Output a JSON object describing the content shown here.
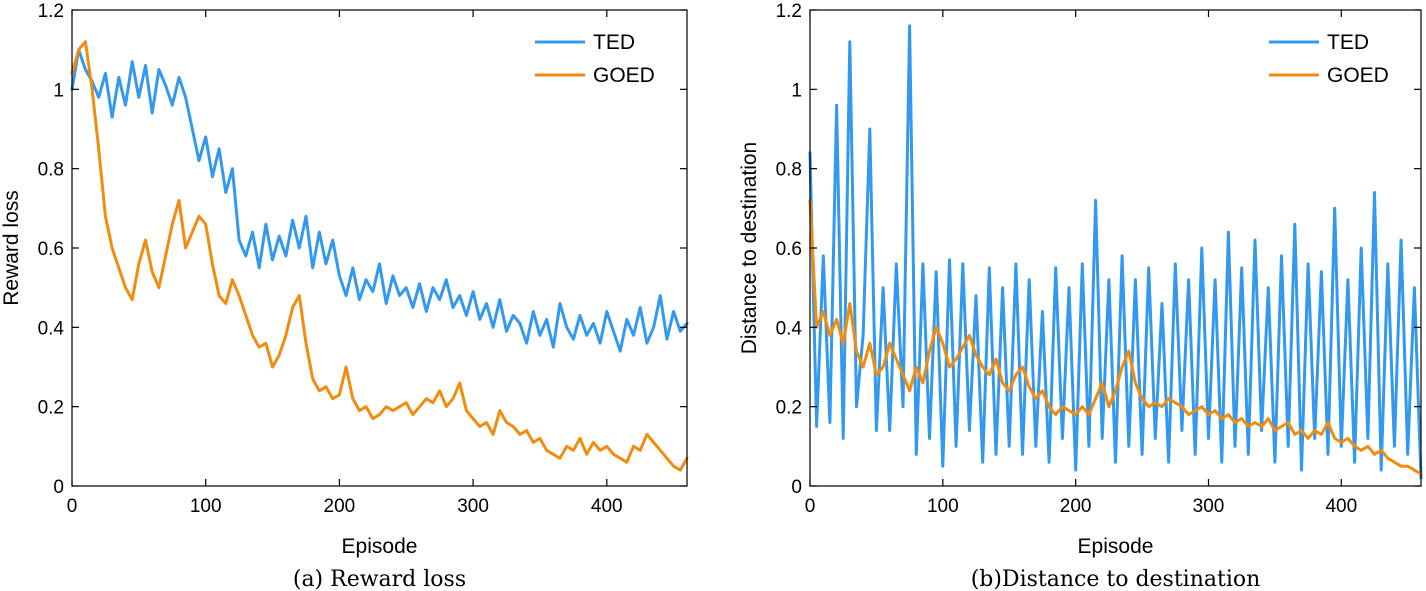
{
  "chart_data": [
    {
      "type": "line",
      "title": "",
      "caption": "(a) Reward loss",
      "xlabel": "Episode",
      "ylabel": "Reward loss",
      "xlim": [
        0,
        460
      ],
      "ylim": [
        0,
        1.2
      ],
      "xticks": [
        0,
        100,
        200,
        300,
        400
      ],
      "yticks": [
        0,
        0.2,
        0.4,
        0.6,
        0.8,
        1,
        1.2
      ],
      "xtick_labels": [
        "0",
        "100",
        "200",
        "300",
        "400"
      ],
      "ytick_labels": [
        "0",
        "0.2",
        "0.4",
        "0.6",
        "0.8",
        "1",
        "1.2"
      ],
      "legend": {
        "location": "top-right",
        "entries": [
          "TED",
          "GOED"
        ]
      },
      "series": [
        {
          "name": "TED",
          "color": "#3399ee",
          "x": [
            0,
            5,
            10,
            15,
            20,
            25,
            30,
            35,
            40,
            45,
            50,
            55,
            60,
            65,
            70,
            75,
            80,
            85,
            90,
            95,
            100,
            105,
            110,
            115,
            120,
            125,
            130,
            135,
            140,
            145,
            150,
            155,
            160,
            165,
            170,
            175,
            180,
            185,
            190,
            195,
            200,
            205,
            210,
            215,
            220,
            225,
            230,
            235,
            240,
            245,
            250,
            255,
            260,
            265,
            270,
            275,
            280,
            285,
            290,
            295,
            300,
            305,
            310,
            315,
            320,
            325,
            330,
            335,
            340,
            345,
            350,
            355,
            360,
            365,
            370,
            375,
            380,
            385,
            390,
            395,
            400,
            405,
            410,
            415,
            420,
            425,
            430,
            435,
            440,
            445,
            450,
            455,
            460
          ],
          "values": [
            1.0,
            1.1,
            1.05,
            1.02,
            0.98,
            1.04,
            0.93,
            1.03,
            0.96,
            1.07,
            0.98,
            1.06,
            0.94,
            1.05,
            1.01,
            0.96,
            1.03,
            0.98,
            0.9,
            0.82,
            0.88,
            0.78,
            0.85,
            0.74,
            0.8,
            0.62,
            0.58,
            0.64,
            0.55,
            0.66,
            0.57,
            0.63,
            0.58,
            0.67,
            0.6,
            0.68,
            0.55,
            0.64,
            0.56,
            0.62,
            0.53,
            0.48,
            0.55,
            0.47,
            0.52,
            0.49,
            0.56,
            0.46,
            0.53,
            0.48,
            0.5,
            0.45,
            0.51,
            0.44,
            0.5,
            0.47,
            0.52,
            0.45,
            0.48,
            0.43,
            0.49,
            0.42,
            0.46,
            0.4,
            0.47,
            0.39,
            0.43,
            0.41,
            0.36,
            0.44,
            0.38,
            0.42,
            0.35,
            0.46,
            0.4,
            0.37,
            0.43,
            0.38,
            0.41,
            0.36,
            0.44,
            0.39,
            0.34,
            0.42,
            0.38,
            0.45,
            0.36,
            0.4,
            0.48,
            0.37,
            0.44,
            0.39,
            0.41
          ]
        },
        {
          "name": "GOED",
          "color": "#f08c10",
          "x": [
            0,
            5,
            10,
            15,
            20,
            25,
            30,
            35,
            40,
            45,
            50,
            55,
            60,
            65,
            70,
            75,
            80,
            85,
            90,
            95,
            100,
            105,
            110,
            115,
            120,
            125,
            130,
            135,
            140,
            145,
            150,
            155,
            160,
            165,
            170,
            175,
            180,
            185,
            190,
            195,
            200,
            205,
            210,
            215,
            220,
            225,
            230,
            235,
            240,
            245,
            250,
            255,
            260,
            265,
            270,
            275,
            280,
            285,
            290,
            295,
            300,
            305,
            310,
            315,
            320,
            325,
            330,
            335,
            340,
            345,
            350,
            355,
            360,
            365,
            370,
            375,
            380,
            385,
            390,
            395,
            400,
            405,
            410,
            415,
            420,
            425,
            430,
            435,
            440,
            445,
            450,
            455,
            460
          ],
          "values": [
            1.04,
            1.1,
            1.12,
            1.0,
            0.85,
            0.68,
            0.6,
            0.55,
            0.5,
            0.47,
            0.56,
            0.62,
            0.54,
            0.5,
            0.58,
            0.66,
            0.72,
            0.6,
            0.64,
            0.68,
            0.66,
            0.56,
            0.48,
            0.46,
            0.52,
            0.48,
            0.43,
            0.38,
            0.35,
            0.36,
            0.3,
            0.33,
            0.38,
            0.45,
            0.48,
            0.36,
            0.27,
            0.24,
            0.25,
            0.22,
            0.23,
            0.3,
            0.22,
            0.19,
            0.2,
            0.17,
            0.18,
            0.2,
            0.19,
            0.2,
            0.21,
            0.18,
            0.2,
            0.22,
            0.21,
            0.24,
            0.2,
            0.22,
            0.26,
            0.19,
            0.17,
            0.15,
            0.16,
            0.13,
            0.19,
            0.16,
            0.15,
            0.13,
            0.14,
            0.11,
            0.12,
            0.09,
            0.08,
            0.07,
            0.1,
            0.09,
            0.12,
            0.08,
            0.11,
            0.09,
            0.1,
            0.08,
            0.07,
            0.06,
            0.1,
            0.09,
            0.13,
            0.11,
            0.09,
            0.07,
            0.05,
            0.04,
            0.07
          ]
        }
      ]
    },
    {
      "type": "line",
      "title": "",
      "caption": "(b)Distance to destination",
      "xlabel": "Episode",
      "ylabel": "Distance to destination",
      "xlim": [
        0,
        460
      ],
      "ylim": [
        0,
        1.2
      ],
      "xticks": [
        0,
        100,
        200,
        300,
        400
      ],
      "yticks": [
        0,
        0.2,
        0.4,
        0.6,
        0.8,
        1,
        1.2
      ],
      "xtick_labels": [
        "0",
        "100",
        "200",
        "300",
        "400"
      ],
      "ytick_labels": [
        "0",
        "0.2",
        "0.4",
        "0.6",
        "0.8",
        "1",
        "1.2"
      ],
      "legend": {
        "location": "top-right",
        "entries": [
          "TED",
          "GOED"
        ]
      },
      "series": [
        {
          "name": "TED",
          "color": "#3399ee",
          "x": [
            0,
            5,
            10,
            15,
            20,
            25,
            30,
            35,
            40,
            45,
            50,
            55,
            60,
            65,
            70,
            75,
            80,
            85,
            90,
            95,
            100,
            105,
            110,
            115,
            120,
            125,
            130,
            135,
            140,
            145,
            150,
            155,
            160,
            165,
            170,
            175,
            180,
            185,
            190,
            195,
            200,
            205,
            210,
            215,
            220,
            225,
            230,
            235,
            240,
            245,
            250,
            255,
            260,
            265,
            270,
            275,
            280,
            285,
            290,
            295,
            300,
            305,
            310,
            315,
            320,
            325,
            330,
            335,
            340,
            345,
            350,
            355,
            360,
            365,
            370,
            375,
            380,
            385,
            390,
            395,
            400,
            405,
            410,
            415,
            420,
            425,
            430,
            435,
            440,
            445,
            450,
            455,
            460
          ],
          "values": [
            0.84,
            0.15,
            0.58,
            0.16,
            0.96,
            0.12,
            1.12,
            0.2,
            0.38,
            0.9,
            0.14,
            0.5,
            0.14,
            0.56,
            0.2,
            1.16,
            0.08,
            0.56,
            0.12,
            0.54,
            0.05,
            0.57,
            0.1,
            0.56,
            0.14,
            0.48,
            0.06,
            0.55,
            0.08,
            0.5,
            0.1,
            0.56,
            0.08,
            0.52,
            0.1,
            0.44,
            0.06,
            0.55,
            0.12,
            0.5,
            0.04,
            0.56,
            0.1,
            0.72,
            0.12,
            0.52,
            0.06,
            0.58,
            0.1,
            0.52,
            0.08,
            0.55,
            0.12,
            0.46,
            0.06,
            0.56,
            0.14,
            0.52,
            0.08,
            0.6,
            0.12,
            0.52,
            0.06,
            0.64,
            0.1,
            0.55,
            0.08,
            0.62,
            0.14,
            0.5,
            0.06,
            0.58,
            0.1,
            0.66,
            0.04,
            0.56,
            0.12,
            0.54,
            0.08,
            0.7,
            0.1,
            0.52,
            0.06,
            0.6,
            0.12,
            0.74,
            0.04,
            0.56,
            0.1,
            0.62,
            0.08,
            0.5,
            0.02
          ]
        },
        {
          "name": "GOED",
          "color": "#f08c10",
          "x": [
            0,
            5,
            10,
            15,
            20,
            25,
            30,
            35,
            40,
            45,
            50,
            55,
            60,
            65,
            70,
            75,
            80,
            85,
            90,
            95,
            100,
            105,
            110,
            115,
            120,
            125,
            130,
            135,
            140,
            145,
            150,
            155,
            160,
            165,
            170,
            175,
            180,
            185,
            190,
            195,
            200,
            205,
            210,
            215,
            220,
            225,
            230,
            235,
            240,
            245,
            250,
            255,
            260,
            265,
            270,
            275,
            280,
            285,
            290,
            295,
            300,
            305,
            310,
            315,
            320,
            325,
            330,
            335,
            340,
            345,
            350,
            355,
            360,
            365,
            370,
            375,
            380,
            385,
            390,
            395,
            400,
            405,
            410,
            415,
            420,
            425,
            430,
            435,
            440,
            445,
            450,
            455,
            460
          ],
          "values": [
            0.72,
            0.4,
            0.44,
            0.38,
            0.42,
            0.36,
            0.46,
            0.34,
            0.3,
            0.36,
            0.28,
            0.3,
            0.36,
            0.32,
            0.28,
            0.24,
            0.3,
            0.26,
            0.34,
            0.4,
            0.36,
            0.3,
            0.32,
            0.35,
            0.38,
            0.33,
            0.3,
            0.28,
            0.32,
            0.26,
            0.24,
            0.28,
            0.3,
            0.25,
            0.22,
            0.24,
            0.2,
            0.18,
            0.2,
            0.19,
            0.18,
            0.2,
            0.18,
            0.22,
            0.26,
            0.2,
            0.24,
            0.3,
            0.34,
            0.26,
            0.22,
            0.2,
            0.21,
            0.2,
            0.22,
            0.21,
            0.2,
            0.18,
            0.19,
            0.2,
            0.18,
            0.19,
            0.17,
            0.18,
            0.16,
            0.17,
            0.15,
            0.16,
            0.15,
            0.17,
            0.14,
            0.15,
            0.16,
            0.13,
            0.14,
            0.12,
            0.14,
            0.13,
            0.16,
            0.12,
            0.11,
            0.12,
            0.1,
            0.09,
            0.1,
            0.08,
            0.09,
            0.07,
            0.06,
            0.05,
            0.05,
            0.04,
            0.03
          ]
        }
      ]
    }
  ]
}
